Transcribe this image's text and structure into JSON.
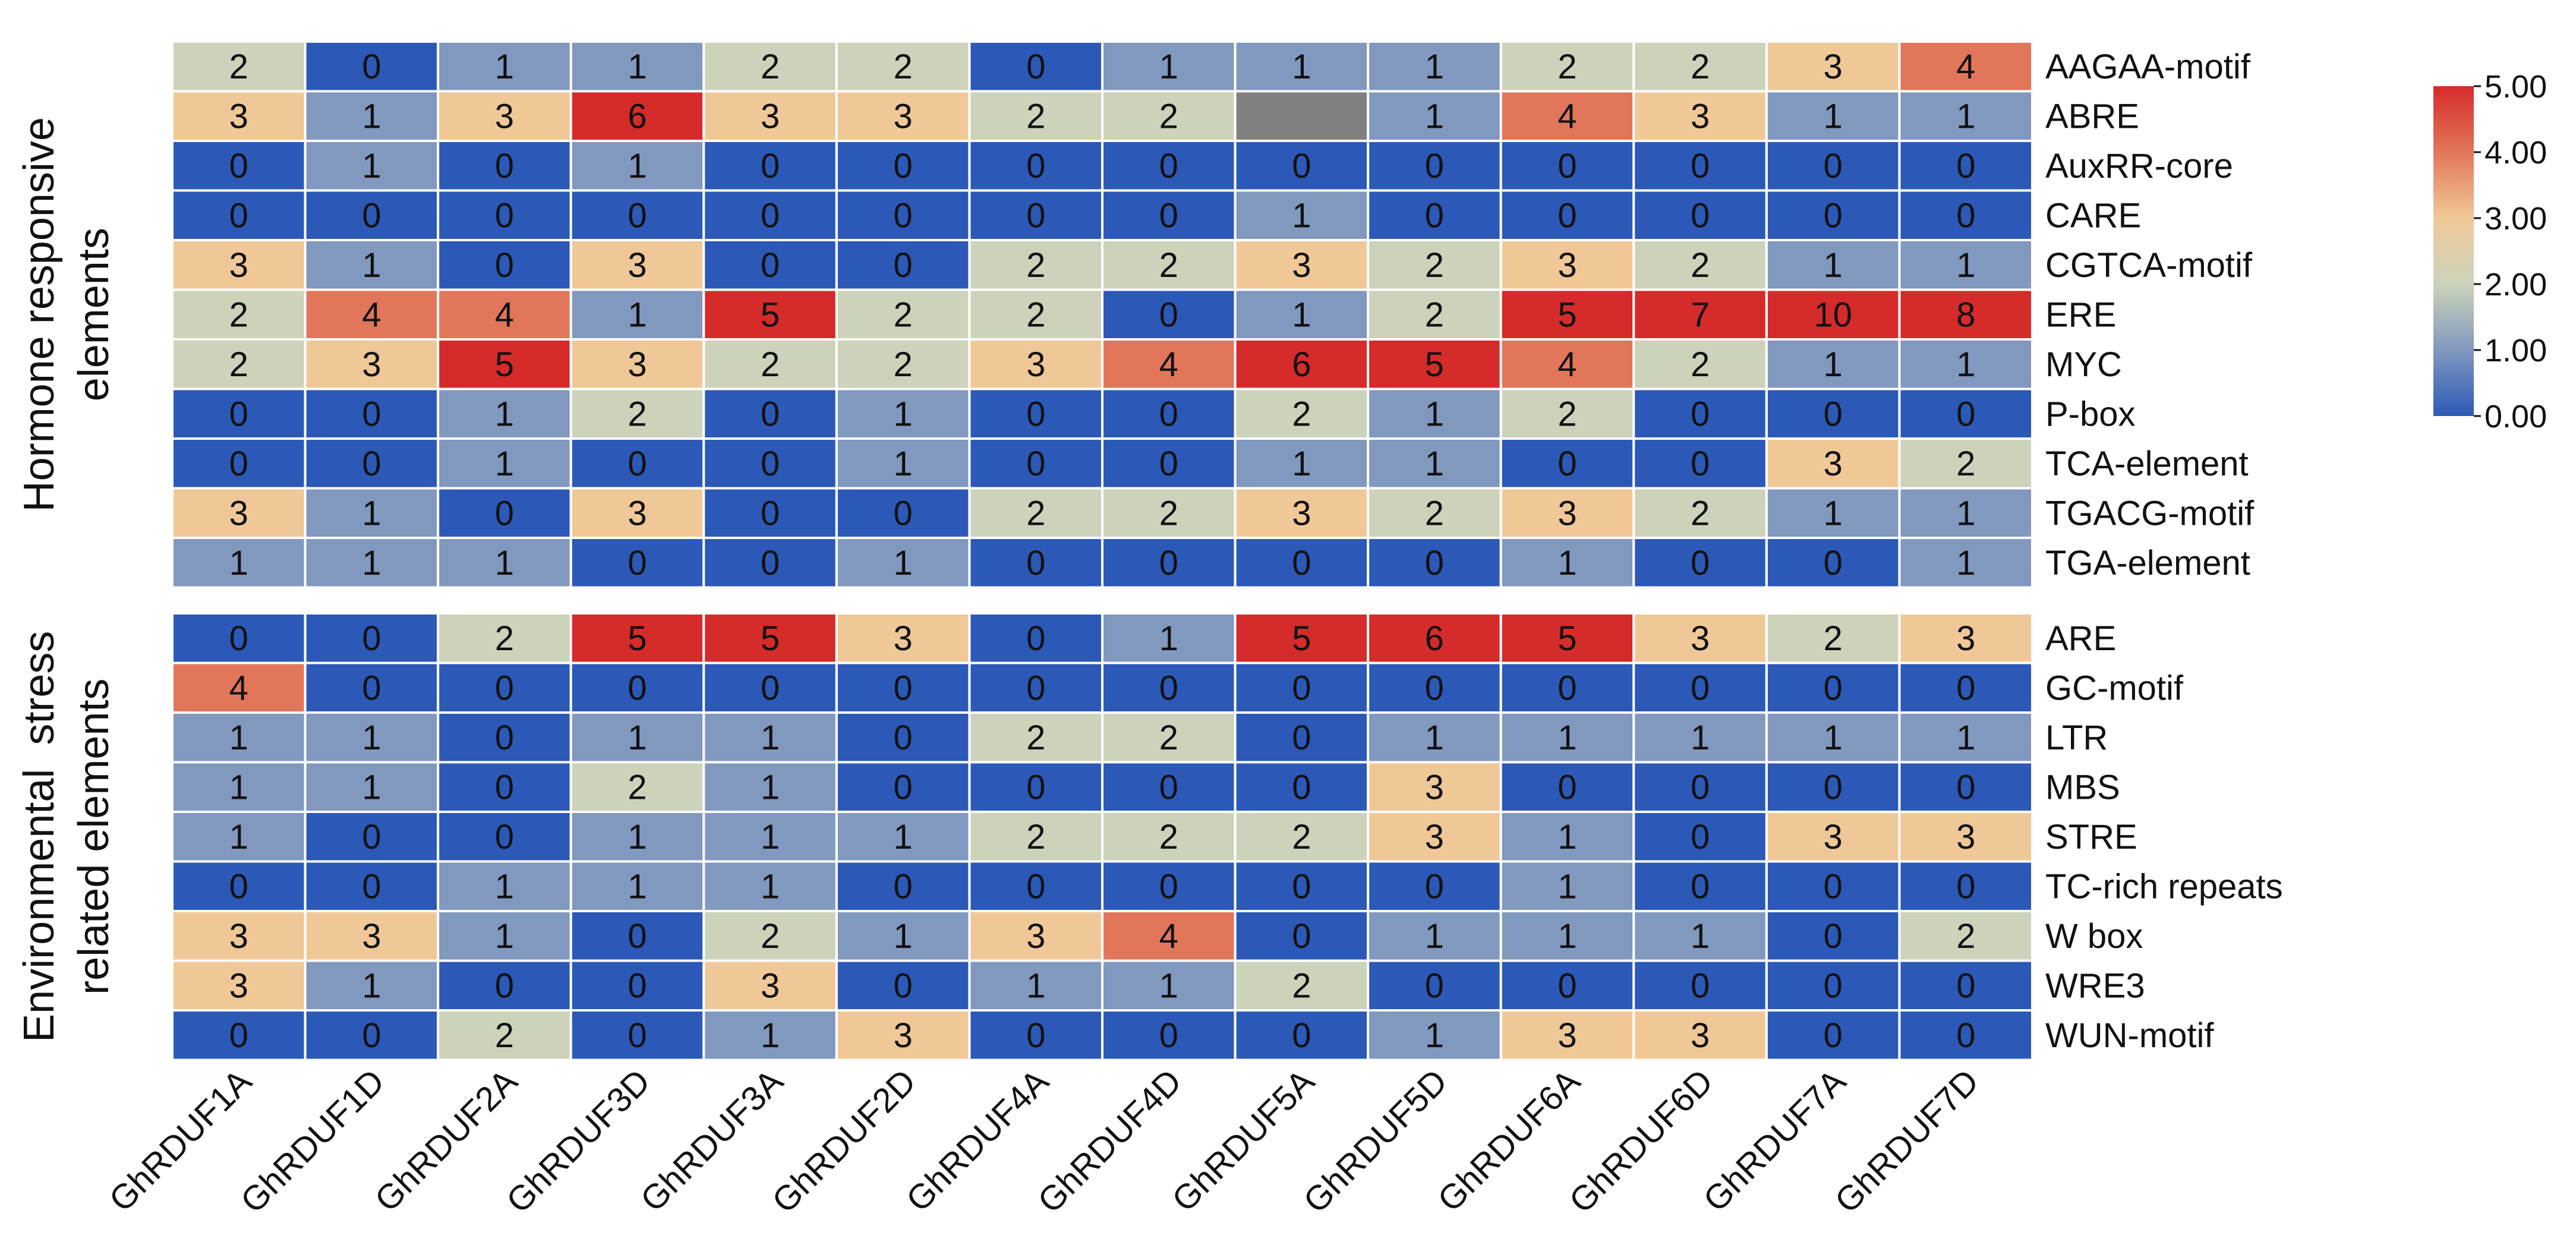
{
  "chart_data": {
    "type": "heatmap",
    "columns": [
      "GhRDUF1A",
      "GhRDUF1D",
      "GhRDUF2A",
      "GhRDUF3D",
      "GhRDUF3A",
      "GhRDUF2D",
      "GhRDUF4A",
      "GhRDUF4D",
      "GhRDUF5A",
      "GhRDUF5D",
      "GhRDUF6A",
      "GhRDUF6D",
      "GhRDUF7A",
      "GhRDUF7D"
    ],
    "panels": [
      {
        "group_label_lines": [
          "Hormone responsive",
          "elements"
        ],
        "rows": [
          {
            "label": "AAGAA-motif",
            "values": [
              2,
              0,
              1,
              1,
              2,
              2,
              0,
              1,
              1,
              1,
              2,
              2,
              3,
              4
            ]
          },
          {
            "label": "ABRE",
            "values": [
              3,
              1,
              3,
              6,
              3,
              3,
              2,
              2,
              null,
              1,
              4,
              3,
              1,
              1
            ]
          },
          {
            "label": "AuxRR-core",
            "values": [
              0,
              1,
              0,
              1,
              0,
              0,
              0,
              0,
              0,
              0,
              0,
              0,
              0,
              0
            ]
          },
          {
            "label": "CARE",
            "values": [
              0,
              0,
              0,
              0,
              0,
              0,
              0,
              0,
              1,
              0,
              0,
              0,
              0,
              0
            ]
          },
          {
            "label": "CGTCA-motif",
            "values": [
              3,
              1,
              0,
              3,
              0,
              0,
              2,
              2,
              3,
              2,
              3,
              2,
              1,
              1
            ]
          },
          {
            "label": "ERE",
            "values": [
              2,
              4,
              4,
              1,
              5,
              2,
              2,
              0,
              1,
              2,
              5,
              7,
              10,
              8
            ]
          },
          {
            "label": "MYC",
            "values": [
              2,
              3,
              5,
              3,
              2,
              2,
              3,
              4,
              6,
              5,
              4,
              2,
              1,
              1
            ]
          },
          {
            "label": "P-box",
            "values": [
              0,
              0,
              1,
              2,
              0,
              1,
              0,
              0,
              2,
              1,
              2,
              0,
              0,
              0
            ]
          },
          {
            "label": "TCA-element",
            "values": [
              0,
              0,
              1,
              0,
              0,
              1,
              0,
              0,
              1,
              1,
              0,
              0,
              3,
              2
            ]
          },
          {
            "label": "TGACG-motif",
            "values": [
              3,
              1,
              0,
              3,
              0,
              0,
              2,
              2,
              3,
              2,
              3,
              2,
              1,
              1
            ]
          },
          {
            "label": "TGA-element",
            "values": [
              1,
              1,
              1,
              0,
              0,
              1,
              0,
              0,
              0,
              0,
              1,
              0,
              0,
              1
            ]
          }
        ]
      },
      {
        "group_label_lines": [
          "Environmental  stress",
          "related elements"
        ],
        "rows": [
          {
            "label": "ARE",
            "values": [
              0,
              0,
              2,
              5,
              5,
              3,
              0,
              1,
              5,
              6,
              5,
              3,
              2,
              3
            ]
          },
          {
            "label": "GC-motif",
            "values": [
              4,
              0,
              0,
              0,
              0,
              0,
              0,
              0,
              0,
              0,
              0,
              0,
              0,
              0
            ]
          },
          {
            "label": "LTR",
            "values": [
              1,
              1,
              0,
              1,
              1,
              0,
              2,
              2,
              0,
              1,
              1,
              1,
              1,
              1
            ]
          },
          {
            "label": "MBS",
            "values": [
              1,
              1,
              0,
              2,
              1,
              0,
              0,
              0,
              0,
              3,
              0,
              0,
              0,
              0
            ]
          },
          {
            "label": "STRE",
            "values": [
              1,
              0,
              0,
              1,
              1,
              1,
              2,
              2,
              2,
              3,
              1,
              0,
              3,
              3
            ]
          },
          {
            "label": "TC-rich repeats",
            "values": [
              0,
              0,
              1,
              1,
              1,
              0,
              0,
              0,
              0,
              0,
              1,
              0,
              0,
              0
            ]
          },
          {
            "label": "W box",
            "values": [
              3,
              3,
              1,
              0,
              2,
              1,
              3,
              4,
              0,
              1,
              1,
              1,
              0,
              2
            ]
          },
          {
            "label": "WRE3",
            "values": [
              3,
              1,
              0,
              0,
              3,
              0,
              1,
              1,
              2,
              0,
              0,
              0,
              0,
              0
            ]
          },
          {
            "label": "WUN-motif",
            "values": [
              0,
              0,
              2,
              0,
              1,
              3,
              0,
              0,
              0,
              1,
              3,
              3,
              0,
              0
            ]
          }
        ]
      }
    ],
    "colorbar": {
      "min": 0,
      "max": 5,
      "ticks": [
        "0.00",
        "1.00",
        "2.00",
        "3.00",
        "4.00",
        "5.00"
      ],
      "stops": [
        "#2c59b7",
        "#8198bf",
        "#ccd3ba",
        "#f0c898",
        "#e2765a",
        "#d52b2a"
      ]
    },
    "missing_color": "#808080",
    "grid_color": "#ffffff"
  }
}
